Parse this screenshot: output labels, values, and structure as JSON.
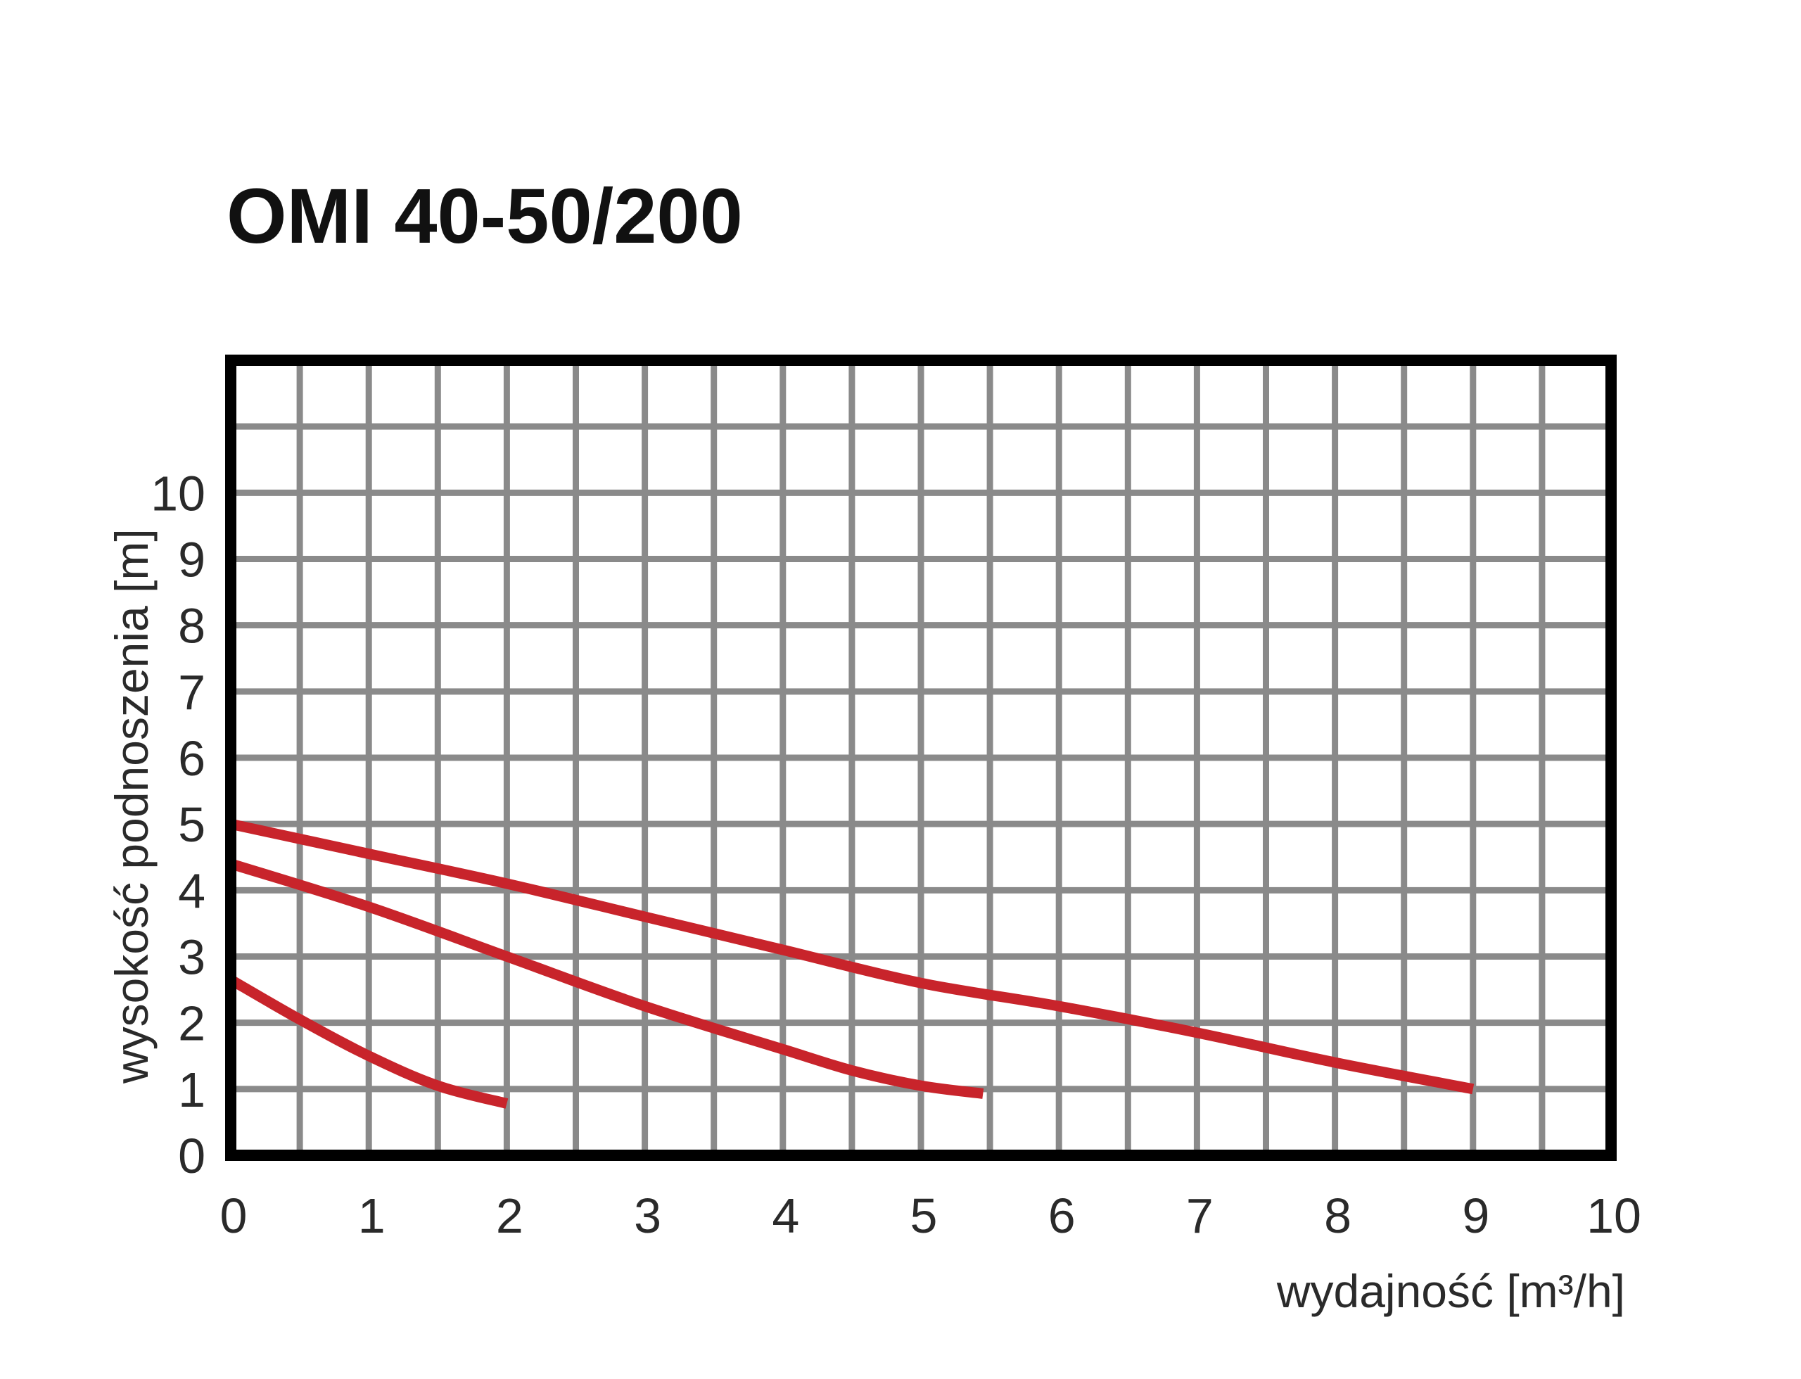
{
  "chart_data": {
    "type": "line",
    "title": "OMI 40-50/200",
    "xlabel": "wydajność [m³/h]",
    "ylabel": "wysokość podnoszenia [m]",
    "xlim": [
      0,
      10
    ],
    "ylim": [
      0,
      12
    ],
    "x_ticks": [
      "0",
      "1",
      "2",
      "3",
      "4",
      "5",
      "6",
      "7",
      "8",
      "9",
      "10"
    ],
    "y_ticks": [
      "0",
      "1",
      "2",
      "3",
      "4",
      "5",
      "6",
      "7",
      "8",
      "9",
      "10"
    ],
    "grid": true,
    "grid_step_x": 0.5,
    "grid_step_y": 1,
    "series": [
      {
        "x": [
          0,
          0.5,
          1,
          1.5,
          2
        ],
        "y": [
          2.65,
          2.05,
          1.5,
          1.05,
          0.78
        ]
      },
      {
        "x": [
          0,
          1,
          2,
          3,
          4,
          4.5,
          5,
          5.45
        ],
        "y": [
          4.4,
          3.75,
          3.0,
          2.25,
          1.6,
          1.28,
          1.05,
          0.93
        ]
      },
      {
        "x": [
          0,
          1,
          2,
          3,
          4,
          5,
          6,
          7,
          8,
          9
        ],
        "y": [
          5.0,
          4.55,
          4.1,
          3.6,
          3.1,
          2.6,
          2.25,
          1.85,
          1.4,
          1.0
        ]
      }
    ],
    "colors": {
      "curve": "#c8242b",
      "grid": "#8a8a8a",
      "frame": "#000000",
      "text": "#2a2a2a"
    }
  }
}
